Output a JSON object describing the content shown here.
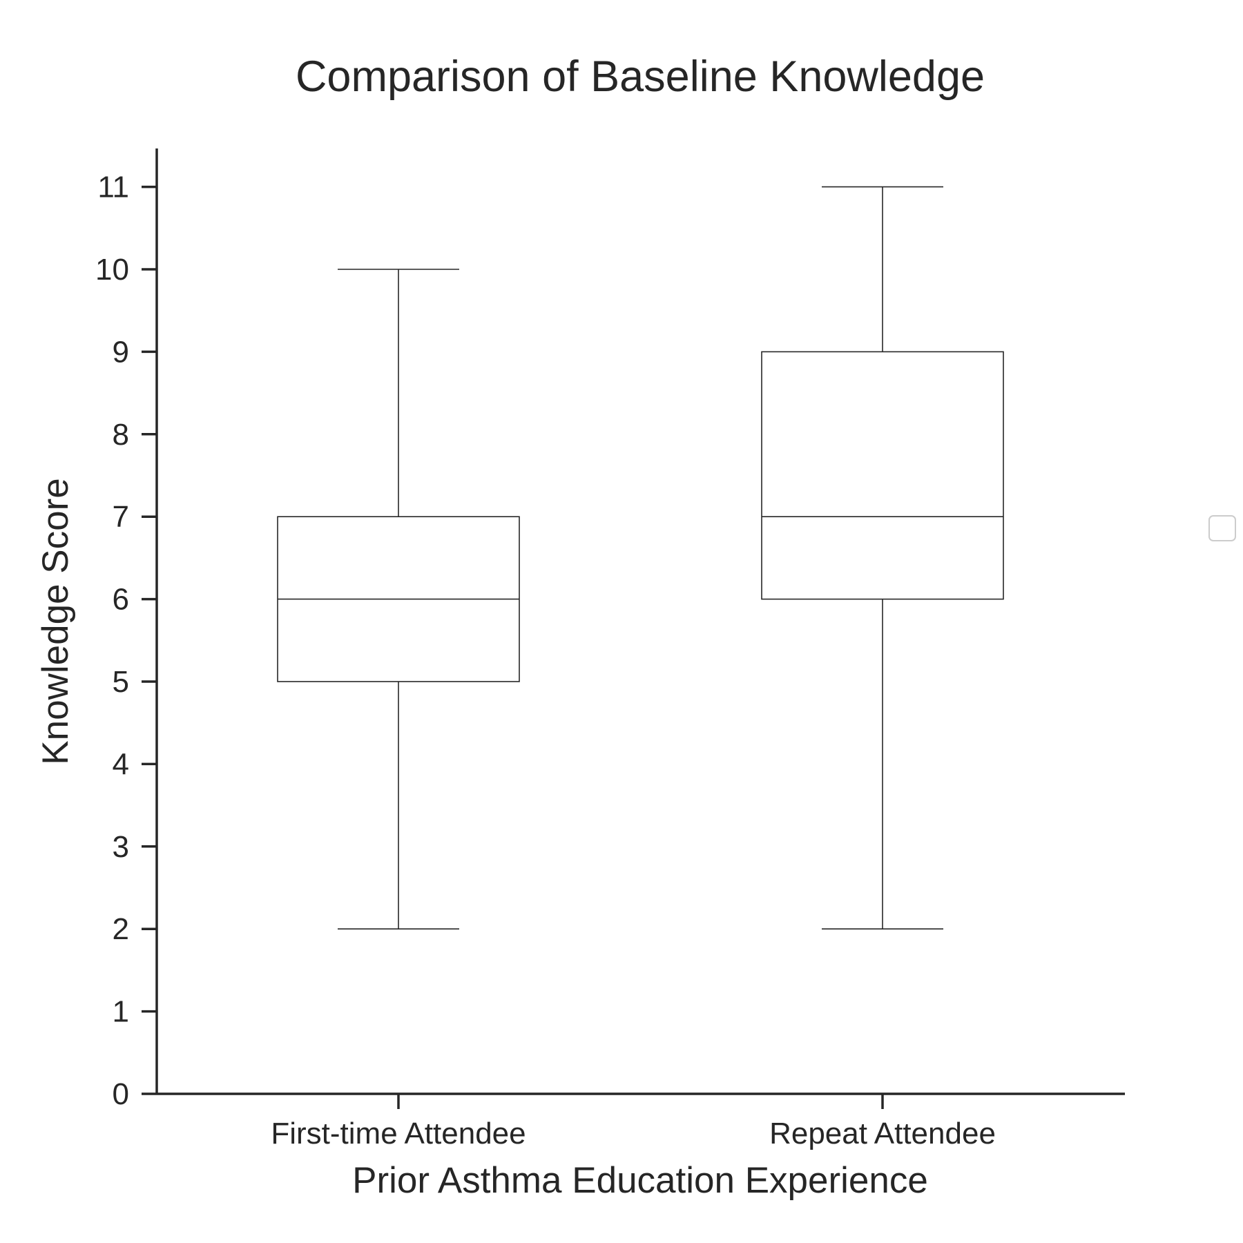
{
  "chart_data": {
    "type": "box",
    "title": "Comparison of Baseline Knowledge",
    "xlabel": "Prior Asthma Education Experience",
    "ylabel": "Knowledge Score",
    "ylim": [
      0,
      11.5
    ],
    "yticks": [
      0,
      1,
      2,
      3,
      4,
      5,
      6,
      7,
      8,
      9,
      10,
      11
    ],
    "categories": [
      "First-time Attendee",
      "Repeat Attendee"
    ],
    "boxes": [
      {
        "category": "First-time Attendee",
        "whisker_low": 2,
        "q1": 5,
        "median": 6,
        "q3": 7,
        "whisker_high": 10
      },
      {
        "category": "Repeat Attendee",
        "whisker_low": 2,
        "q1": 6,
        "median": 7,
        "q3": 9,
        "whisker_high": 11
      }
    ],
    "grid": false,
    "legend": {
      "placement": "right",
      "entries": []
    }
  },
  "colors": {
    "axis": "#262626",
    "box_line": "#262626",
    "box_fill": "#ffffff",
    "legend_border": "#cccccc"
  }
}
